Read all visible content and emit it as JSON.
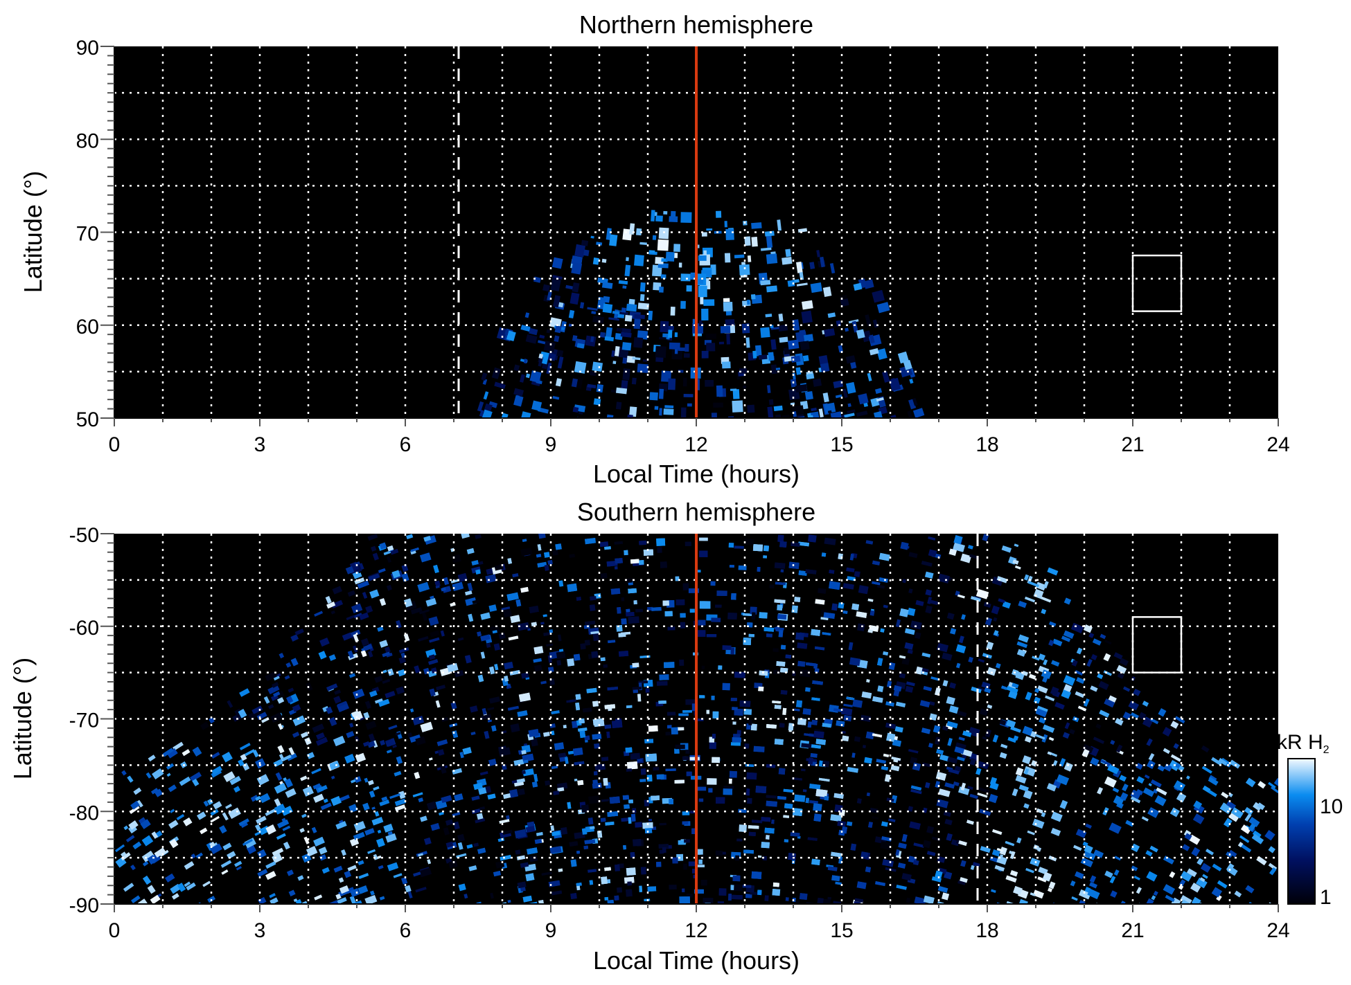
{
  "chart_data": [
    {
      "type": "heatmap",
      "title": "Northern hemisphere",
      "xlabel": "Local Time (hours)",
      "ylabel": "Latitude (°)",
      "xlim": [
        0,
        24
      ],
      "ylim": [
        50,
        90
      ],
      "xticks": [
        "0",
        "3",
        "6",
        "9",
        "12",
        "15",
        "18",
        "21",
        "24"
      ],
      "yticks": [
        "50",
        "60",
        "70",
        "80",
        "90"
      ],
      "grid": true,
      "noon_line_lt": 12,
      "terminator_line_lt": 7.1,
      "box": {
        "lt": [
          21,
          22
        ],
        "lat": [
          61.5,
          67.5
        ]
      },
      "emission_region": {
        "lt_range_at_50": [
          7.7,
          16.7
        ],
        "max_lat": 73,
        "bright_oval_lat": [
          62,
          73
        ]
      }
    },
    {
      "type": "heatmap",
      "title": "Southern hemisphere",
      "xlabel": "Local Time (hours)",
      "ylabel": "Latitude (°)",
      "xlim": [
        0,
        24
      ],
      "ylim": [
        -90,
        -50
      ],
      "xticks": [
        "0",
        "3",
        "6",
        "9",
        "12",
        "15",
        "18",
        "21",
        "24"
      ],
      "yticks": [
        "-90",
        "-80",
        "-70",
        "-60",
        "-50"
      ],
      "grid": true,
      "noon_line_lt": 12,
      "terminator_line_lt": 17.8,
      "box": {
        "lt": [
          21,
          22
        ],
        "lat": [
          -65,
          -59
        ]
      },
      "emission_region": {
        "boundary_lat_at_0_and_24": -75,
        "full_coverage_lt": [
          5.2,
          18.8
        ]
      }
    }
  ],
  "colorbar": {
    "label": "kR H₂",
    "label_main": "kR H",
    "label_sub": "2",
    "scale": "log",
    "range": [
      1,
      30
    ],
    "ticks": [
      "1",
      "10"
    ]
  },
  "colors": {
    "background": "#000000",
    "noon_line": "#d83a10",
    "low": "#000010",
    "mid": "#0066dd",
    "high": "#ffffff"
  }
}
